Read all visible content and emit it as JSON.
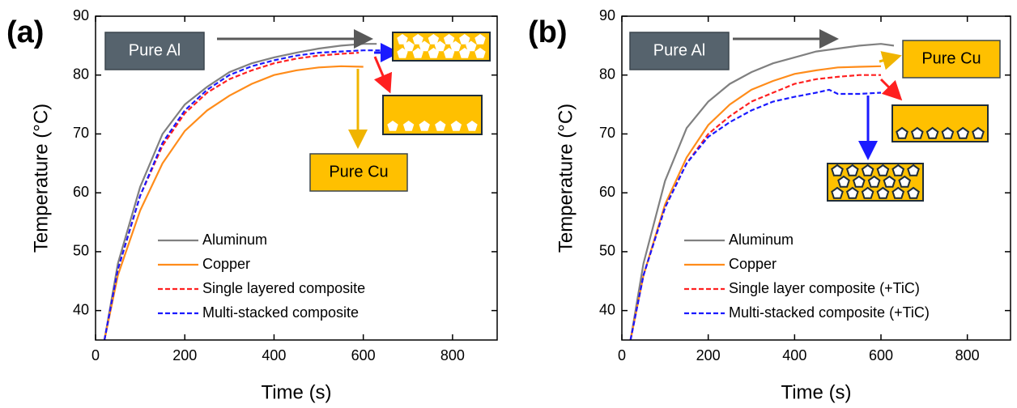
{
  "chart_data": [
    {
      "type": "line",
      "panel_label": "(a)",
      "x_label": "Time (s)",
      "y_label": "Temperature (°C)",
      "xlim": [
        0,
        900
      ],
      "xticks": [
        0,
        200,
        400,
        600,
        800
      ],
      "ylim": [
        35,
        90
      ],
      "yticks": [
        40,
        50,
        60,
        70,
        80,
        90
      ],
      "legend": "lower center",
      "annotations": [
        "Pure Al",
        "Pure Cu"
      ],
      "series": [
        {
          "name": "Aluminum",
          "color": "#808080",
          "dashed": false,
          "x": [
            20,
            50,
            100,
            150,
            200,
            250,
            300,
            350,
            400,
            450,
            500,
            550,
            600,
            630
          ],
          "values": [
            35,
            48,
            61,
            70,
            75,
            78,
            80.5,
            82,
            83,
            83.8,
            84.5,
            85,
            85.3,
            85.3
          ]
        },
        {
          "name": "Copper",
          "color": "#ff8c1a",
          "dashed": false,
          "x": [
            20,
            50,
            100,
            150,
            200,
            250,
            300,
            350,
            400,
            450,
            500,
            550,
            600
          ],
          "values": [
            35,
            46,
            57,
            65,
            70.5,
            74,
            76.5,
            78.5,
            80,
            80.8,
            81.3,
            81.5,
            81.4
          ]
        },
        {
          "name": "Single layered composite",
          "color": "#ff2020",
          "dashed": true,
          "x": [
            20,
            50,
            100,
            150,
            200,
            250,
            300,
            350,
            400,
            450,
            500,
            550,
            590
          ],
          "values": [
            35,
            47,
            59.5,
            68,
            73.5,
            77,
            79.3,
            80.8,
            82,
            82.8,
            83.3,
            83.6,
            83.8
          ]
        },
        {
          "name": "Multi-stacked composite",
          "color": "#1a1aff",
          "dashed": true,
          "x": [
            20,
            50,
            100,
            150,
            200,
            250,
            300,
            350,
            400,
            450,
            500,
            550,
            600,
            640
          ],
          "values": [
            35,
            47,
            59.5,
            68.5,
            74,
            77.5,
            80,
            81.5,
            82.5,
            83.3,
            83.8,
            84,
            84.2,
            84.2
          ]
        }
      ]
    },
    {
      "type": "line",
      "panel_label": "(b)",
      "x_label": "Time (s)",
      "y_label": "Temperature (°C)",
      "xlim": [
        0,
        900
      ],
      "xticks": [
        0,
        200,
        400,
        600,
        800
      ],
      "ylim": [
        35,
        90
      ],
      "yticks": [
        40,
        50,
        60,
        70,
        80,
        90
      ],
      "legend": "lower center",
      "annotations": [
        "Pure Al",
        "Pure Cu"
      ],
      "series": [
        {
          "name": "Aluminum",
          "color": "#808080",
          "dashed": false,
          "x": [
            20,
            50,
            100,
            150,
            200,
            250,
            300,
            350,
            400,
            450,
            500,
            550,
            600,
            630
          ],
          "values": [
            35,
            48,
            62,
            71,
            75.5,
            78.5,
            80.5,
            82,
            83,
            84,
            84.5,
            85,
            85.3,
            85
          ]
        },
        {
          "name": "Copper",
          "color": "#ff8c1a",
          "dashed": false,
          "x": [
            20,
            50,
            100,
            150,
            200,
            250,
            300,
            350,
            400,
            450,
            500,
            550,
            600
          ],
          "values": [
            35,
            46,
            58,
            66,
            71.5,
            75,
            77.5,
            79,
            80.2,
            80.8,
            81.3,
            81.4,
            81.5
          ]
        },
        {
          "name": "Single layer composite (+TiC)",
          "color": "#ff2020",
          "dashed": true,
          "x": [
            20,
            50,
            100,
            150,
            200,
            250,
            300,
            350,
            400,
            450,
            500,
            550,
            600
          ],
          "values": [
            35,
            46,
            57.5,
            65,
            70,
            73,
            75.5,
            77,
            78.5,
            79.3,
            79.7,
            80,
            80
          ]
        },
        {
          "name": "Multi-stacked composite (+TiC)",
          "color": "#1a1aff",
          "dashed": true,
          "x": [
            20,
            50,
            100,
            150,
            200,
            250,
            300,
            350,
            400,
            450,
            480,
            500,
            550,
            600
          ],
          "values": [
            35,
            46,
            57.5,
            65,
            69.5,
            72,
            74,
            75.5,
            76.3,
            77,
            77.5,
            76.8,
            76.8,
            77
          ]
        }
      ]
    }
  ]
}
